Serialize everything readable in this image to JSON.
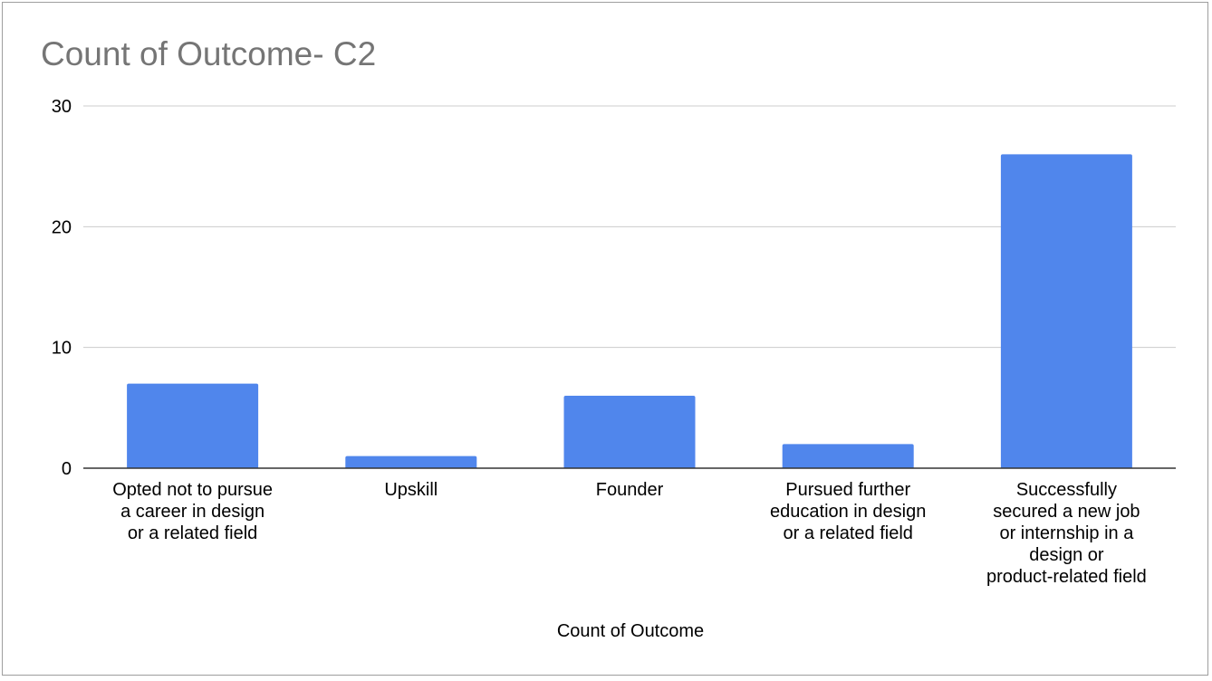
{
  "chart_data": {
    "type": "bar",
    "title": "Count of Outcome- C2",
    "xlabel": "Count of Outcome",
    "ylabel": "",
    "ylim": [
      0,
      30
    ],
    "yticks": [
      0,
      10,
      20,
      30
    ],
    "grid": true,
    "legend": "none",
    "bar_color": "#5086ec",
    "categories": [
      [
        "Opted not to pursue",
        "a career in design",
        "or a related field"
      ],
      [
        "Upskill"
      ],
      [
        "Founder"
      ],
      [
        "Pursued further",
        "education in design",
        "or a related field"
      ],
      [
        "Successfully",
        "secured a new job",
        "or internship in a",
        "design or",
        "product-related field"
      ]
    ],
    "values": [
      7,
      1,
      6,
      2,
      26
    ]
  }
}
